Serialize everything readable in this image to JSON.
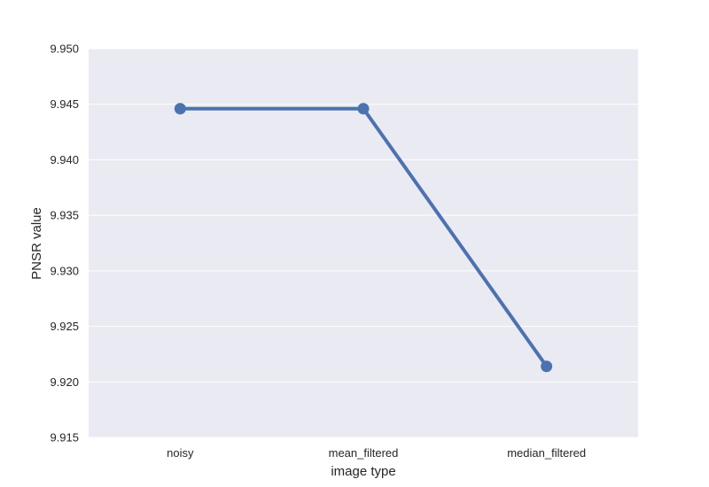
{
  "chart_data": {
    "type": "line",
    "categories": [
      "noisy",
      "mean_filtered",
      "median_filtered"
    ],
    "values": [
      9.9446,
      9.9446,
      9.9214
    ],
    "xlabel": "image type",
    "ylabel": "PNSR value",
    "ylim": [
      9.915,
      9.95
    ],
    "yticks": [
      "9.915",
      "9.920",
      "9.925",
      "9.930",
      "9.935",
      "9.940",
      "9.945",
      "9.950"
    ],
    "grid": true,
    "colors": {
      "background": "#eaeaf2",
      "grid": "#ffffff",
      "line": "#4c72b0"
    }
  }
}
